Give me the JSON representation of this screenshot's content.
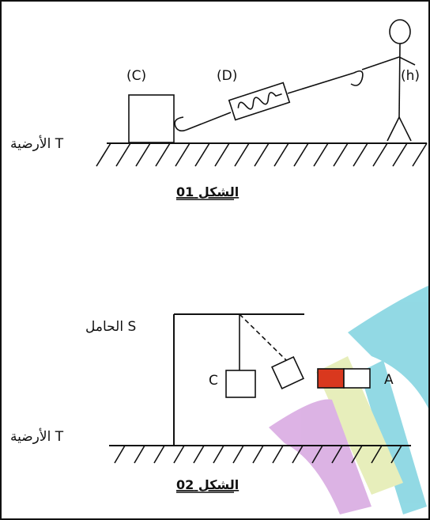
{
  "figure1": {
    "caption": "الشكل 01",
    "ground_label": "الأرضية T",
    "body_label": "(C)",
    "dynamometer_label": "(D)",
    "person_label": "(h)"
  },
  "figure2": {
    "caption": "الشكل 02",
    "ground_label": "الأرضية T",
    "support_label": "الحامل S",
    "body_label": "C",
    "magnet_label": "A"
  },
  "colors": {
    "magnet_red": "#d9381e",
    "watermark_cyan": "#7fd3e0",
    "watermark_yellow": "#e3ecb0",
    "watermark_purple": "#d7a6e0"
  }
}
